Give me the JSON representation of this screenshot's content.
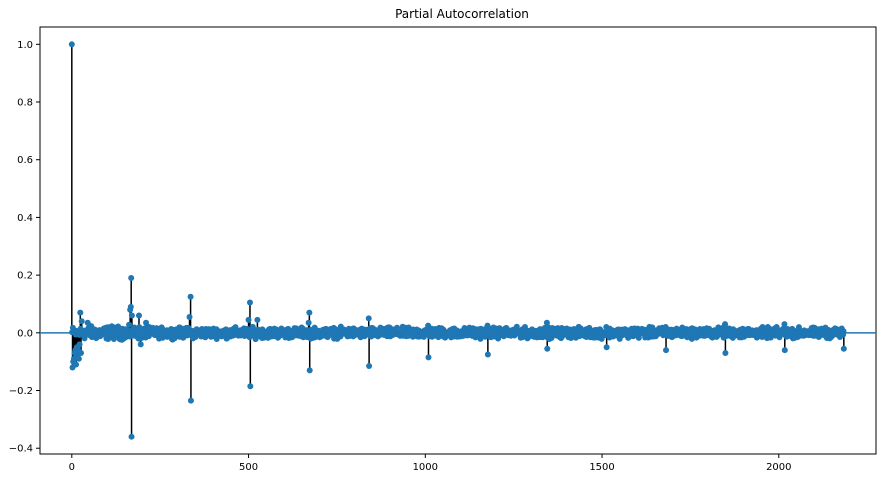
{
  "chart_data": {
    "type": "scatter",
    "subtype": "stem",
    "title": "Partial Autocorrelation",
    "xlabel": "",
    "ylabel": "",
    "xlim": [
      -90,
      2275
    ],
    "ylim": [
      -0.42,
      1.06
    ],
    "x_ticks": [
      0,
      500,
      1000,
      1500,
      2000
    ],
    "y_ticks": [
      -0.4,
      -0.2,
      0.0,
      0.2,
      0.4,
      0.6,
      0.8,
      1.0
    ],
    "y_tick_labels": [
      "−0.4",
      "−0.2",
      "0.0",
      "0.2",
      "0.4",
      "0.6",
      "0.8",
      "1.0"
    ],
    "grid": false,
    "colors": {
      "marker": "#1f77b4",
      "stem": "#000000",
      "baseline": "#1f77b4"
    },
    "lag_max": 2184,
    "notable_lags": [
      {
        "x": 0,
        "y": 1.0
      },
      {
        "x": 2,
        "y": -0.12
      },
      {
        "x": 4,
        "y": -0.1
      },
      {
        "x": 6,
        "y": -0.09
      },
      {
        "x": 8,
        "y": -0.07
      },
      {
        "x": 10,
        "y": -0.06
      },
      {
        "x": 12,
        "y": -0.11
      },
      {
        "x": 14,
        "y": -0.05
      },
      {
        "x": 16,
        "y": -0.08
      },
      {
        "x": 18,
        "y": -0.06
      },
      {
        "x": 20,
        "y": -0.09
      },
      {
        "x": 22,
        "y": -0.04
      },
      {
        "x": 24,
        "y": 0.07
      },
      {
        "x": 26,
        "y": -0.07
      },
      {
        "x": 28,
        "y": 0.04
      },
      {
        "x": 45,
        "y": 0.035
      },
      {
        "x": 165,
        "y": 0.08
      },
      {
        "x": 167,
        "y": 0.09
      },
      {
        "x": 168,
        "y": 0.19
      },
      {
        "x": 169,
        "y": -0.36
      },
      {
        "x": 170,
        "y": 0.06
      },
      {
        "x": 190,
        "y": 0.06
      },
      {
        "x": 195,
        "y": -0.04
      },
      {
        "x": 210,
        "y": 0.035
      },
      {
        "x": 333,
        "y": 0.055
      },
      {
        "x": 336,
        "y": 0.125
      },
      {
        "x": 337,
        "y": -0.235
      },
      {
        "x": 500,
        "y": 0.045
      },
      {
        "x": 504,
        "y": 0.105
      },
      {
        "x": 505,
        "y": -0.185
      },
      {
        "x": 525,
        "y": 0.045
      },
      {
        "x": 670,
        "y": 0.035
      },
      {
        "x": 672,
        "y": 0.07
      },
      {
        "x": 673,
        "y": -0.13
      },
      {
        "x": 840,
        "y": 0.05
      },
      {
        "x": 841,
        "y": -0.115
      },
      {
        "x": 1008,
        "y": 0.025
      },
      {
        "x": 1009,
        "y": -0.085
      },
      {
        "x": 1176,
        "y": 0.025
      },
      {
        "x": 1177,
        "y": -0.075
      },
      {
        "x": 1344,
        "y": 0.035
      },
      {
        "x": 1345,
        "y": -0.055
      },
      {
        "x": 1512,
        "y": 0.02
      },
      {
        "x": 1513,
        "y": -0.05
      },
      {
        "x": 1680,
        "y": 0.02
      },
      {
        "x": 1681,
        "y": -0.06
      },
      {
        "x": 1848,
        "y": 0.03
      },
      {
        "x": 1849,
        "y": -0.07
      },
      {
        "x": 2016,
        "y": 0.03
      },
      {
        "x": 2017,
        "y": -0.06
      },
      {
        "x": 2184,
        "y": -0.055
      }
    ],
    "noise_band": [
      -0.025,
      0.025
    ]
  }
}
